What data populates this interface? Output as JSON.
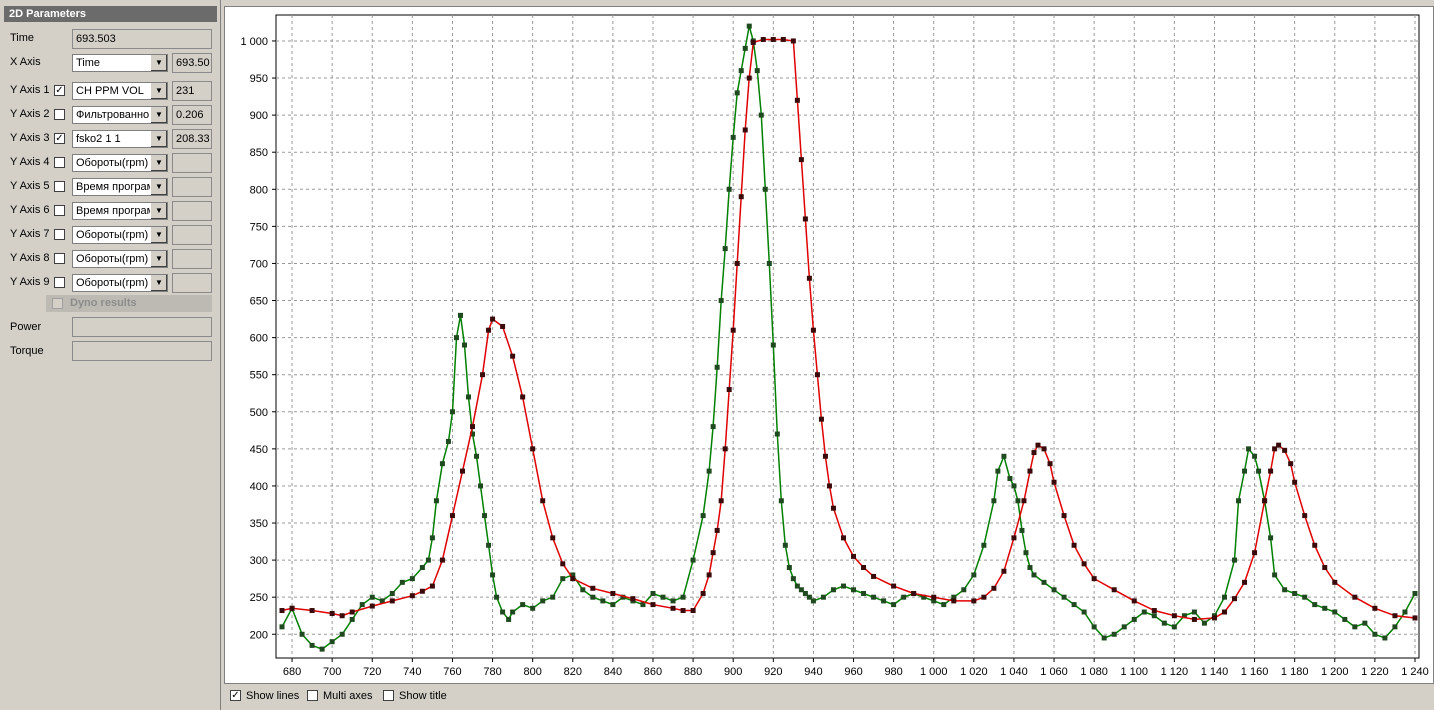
{
  "panel": {
    "title": "2D Parameters",
    "time_label": "Time",
    "time_value": "693.503",
    "x_axis": {
      "label": "X Axis",
      "selected": "Time",
      "value": "693.50"
    },
    "y_axes": [
      {
        "label": "Y Axis 1",
        "checked": true,
        "selected": "CH PPM VOL",
        "value": "231"
      },
      {
        "label": "Y Axis 2",
        "checked": false,
        "selected": "Фильтрованно",
        "value": "0.206"
      },
      {
        "label": "Y Axis 3",
        "checked": true,
        "selected": "fsko2 1 1",
        "value": "208.33"
      },
      {
        "label": "Y Axis 4",
        "checked": false,
        "selected": "Обороты(rpm)",
        "value": ""
      },
      {
        "label": "Y Axis 5",
        "checked": false,
        "selected": "Время програм",
        "value": ""
      },
      {
        "label": "Y Axis 6",
        "checked": false,
        "selected": "Время програм",
        "value": ""
      },
      {
        "label": "Y Axis 7",
        "checked": false,
        "selected": "Обороты(rpm)",
        "value": ""
      },
      {
        "label": "Y Axis 8",
        "checked": false,
        "selected": "Обороты(rpm)",
        "value": ""
      },
      {
        "label": "Y Axis 9",
        "checked": false,
        "selected": "Обороты(rpm)",
        "value": ""
      }
    ],
    "dyno_label": "Dyno results",
    "power_label": "Power",
    "torque_label": "Torque"
  },
  "options": {
    "show_lines": {
      "label": "Show lines",
      "checked": true
    },
    "multi_axes": {
      "label": "Multi axes",
      "checked": false
    },
    "show_title": {
      "label": "Show title",
      "checked": false
    }
  },
  "colors": {
    "series1_line": "#008000",
    "series1_marker": "#1f4a1f",
    "series2_line": "#e00000",
    "series2_marker": "#3a0a0a",
    "grid": "#9a9a9a"
  },
  "chart_data": {
    "type": "line",
    "title": "",
    "xlabel": "",
    "ylabel": "",
    "xlim": [
      672,
      1242
    ],
    "ylim": [
      168,
      1035
    ],
    "x_ticks": [
      680,
      700,
      720,
      740,
      760,
      780,
      800,
      820,
      840,
      860,
      880,
      900,
      920,
      940,
      960,
      980,
      1000,
      1020,
      1040,
      1060,
      1080,
      1100,
      1120,
      1140,
      1160,
      1180,
      1200,
      1220,
      1240
    ],
    "x_tick_labels": [
      "680",
      "700",
      "720",
      "740",
      "760",
      "780",
      "800",
      "820",
      "840",
      "860",
      "880",
      "900",
      "920",
      "940",
      "960",
      "980",
      "1 000",
      "1 020",
      "1 040",
      "1 060",
      "1 080",
      "1 100",
      "1 120",
      "1 140",
      "1 160",
      "1 180",
      "1 200",
      "1 220",
      "1 240"
    ],
    "y_ticks": [
      200,
      250,
      300,
      350,
      400,
      450,
      500,
      550,
      600,
      650,
      700,
      750,
      800,
      850,
      900,
      950,
      1000
    ],
    "y_tick_labels": [
      "200",
      "250",
      "300",
      "350",
      "400",
      "450",
      "500",
      "550",
      "600",
      "650",
      "700",
      "750",
      "800",
      "850",
      "900",
      "950",
      "1 000"
    ],
    "grid": true,
    "legend": "none",
    "series": [
      {
        "x": [
          675,
          680,
          685,
          690,
          695,
          700,
          705,
          710,
          715,
          720,
          725,
          730,
          735,
          740,
          745,
          748,
          750,
          752,
          755,
          758,
          760,
          762,
          764,
          766,
          768,
          770,
          772,
          774,
          776,
          778,
          780,
          782,
          785,
          788,
          790,
          795,
          800,
          805,
          810,
          815,
          820,
          825,
          830,
          835,
          840,
          845,
          850,
          855,
          860,
          865,
          870,
          875,
          880,
          885,
          888,
          890,
          892,
          894,
          896,
          898,
          900,
          902,
          904,
          906,
          908,
          910,
          912,
          914,
          916,
          918,
          920,
          922,
          924,
          926,
          928,
          930,
          932,
          934,
          936,
          938,
          940,
          945,
          950,
          955,
          960,
          965,
          970,
          975,
          980,
          985,
          990,
          995,
          1000,
          1005,
          1010,
          1015,
          1020,
          1025,
          1030,
          1032,
          1035,
          1038,
          1040,
          1042,
          1044,
          1046,
          1048,
          1050,
          1055,
          1060,
          1065,
          1070,
          1075,
          1080,
          1085,
          1090,
          1095,
          1100,
          1105,
          1110,
          1115,
          1120,
          1125,
          1130,
          1135,
          1140,
          1145,
          1150,
          1152,
          1155,
          1157,
          1160,
          1162,
          1165,
          1168,
          1170,
          1175,
          1180,
          1185,
          1190,
          1195,
          1200,
          1205,
          1210,
          1215,
          1220,
          1225,
          1230,
          1235,
          1240
        ],
        "y": [
          210,
          235,
          200,
          185,
          180,
          190,
          200,
          220,
          240,
          250,
          245,
          255,
          270,
          275,
          290,
          300,
          330,
          380,
          430,
          460,
          500,
          600,
          630,
          590,
          520,
          470,
          440,
          400,
          360,
          320,
          280,
          250,
          230,
          220,
          230,
          240,
          235,
          245,
          250,
          275,
          280,
          260,
          250,
          245,
          240,
          250,
          245,
          240,
          255,
          250,
          245,
          250,
          300,
          360,
          420,
          480,
          560,
          650,
          720,
          800,
          870,
          930,
          960,
          990,
          1020,
          1000,
          960,
          900,
          800,
          700,
          590,
          470,
          380,
          320,
          290,
          275,
          265,
          260,
          255,
          250,
          245,
          250,
          260,
          265,
          260,
          255,
          250,
          245,
          240,
          250,
          255,
          250,
          245,
          240,
          250,
          260,
          280,
          320,
          380,
          420,
          440,
          410,
          400,
          380,
          340,
          310,
          290,
          280,
          270,
          260,
          250,
          240,
          230,
          210,
          195,
          200,
          210,
          220,
          230,
          225,
          215,
          210,
          225,
          230,
          215,
          225,
          250,
          300,
          380,
          420,
          450,
          440,
          420,
          380,
          330,
          280,
          260,
          255,
          250,
          240,
          235,
          230,
          220,
          210,
          215,
          200,
          195,
          210,
          230,
          255
        ]
      },
      {
        "x": [
          675,
          680,
          690,
          700,
          705,
          710,
          720,
          730,
          740,
          745,
          750,
          755,
          760,
          765,
          770,
          775,
          778,
          780,
          785,
          790,
          795,
          800,
          805,
          810,
          815,
          820,
          830,
          840,
          850,
          860,
          870,
          875,
          880,
          885,
          888,
          890,
          892,
          894,
          896,
          898,
          900,
          902,
          904,
          906,
          908,
          910,
          915,
          920,
          925,
          930,
          932,
          934,
          936,
          938,
          940,
          942,
          944,
          946,
          948,
          950,
          955,
          960,
          965,
          970,
          980,
          990,
          1000,
          1010,
          1020,
          1025,
          1030,
          1035,
          1040,
          1045,
          1048,
          1050,
          1052,
          1055,
          1058,
          1060,
          1065,
          1070,
          1075,
          1080,
          1090,
          1100,
          1110,
          1120,
          1130,
          1140,
          1145,
          1150,
          1155,
          1160,
          1165,
          1168,
          1170,
          1172,
          1175,
          1178,
          1180,
          1185,
          1190,
          1195,
          1200,
          1210,
          1220,
          1230,
          1240
        ],
        "y": [
          232,
          235,
          232,
          228,
          225,
          230,
          238,
          245,
          252,
          258,
          265,
          300,
          360,
          420,
          480,
          550,
          610,
          625,
          615,
          575,
          520,
          450,
          380,
          330,
          295,
          275,
          262,
          255,
          248,
          240,
          235,
          232,
          232,
          255,
          280,
          310,
          340,
          380,
          450,
          530,
          610,
          700,
          790,
          880,
          950,
          998,
          1002,
          1002,
          1002,
          1000,
          920,
          840,
          760,
          680,
          610,
          550,
          490,
          440,
          400,
          370,
          330,
          305,
          290,
          278,
          265,
          255,
          250,
          245,
          245,
          250,
          262,
          285,
          330,
          380,
          420,
          445,
          455,
          450,
          430,
          405,
          360,
          320,
          295,
          275,
          260,
          245,
          232,
          225,
          220,
          222,
          230,
          248,
          270,
          310,
          380,
          420,
          450,
          455,
          448,
          430,
          405,
          360,
          320,
          290,
          270,
          250,
          235,
          225,
          222
        ]
      }
    ]
  }
}
